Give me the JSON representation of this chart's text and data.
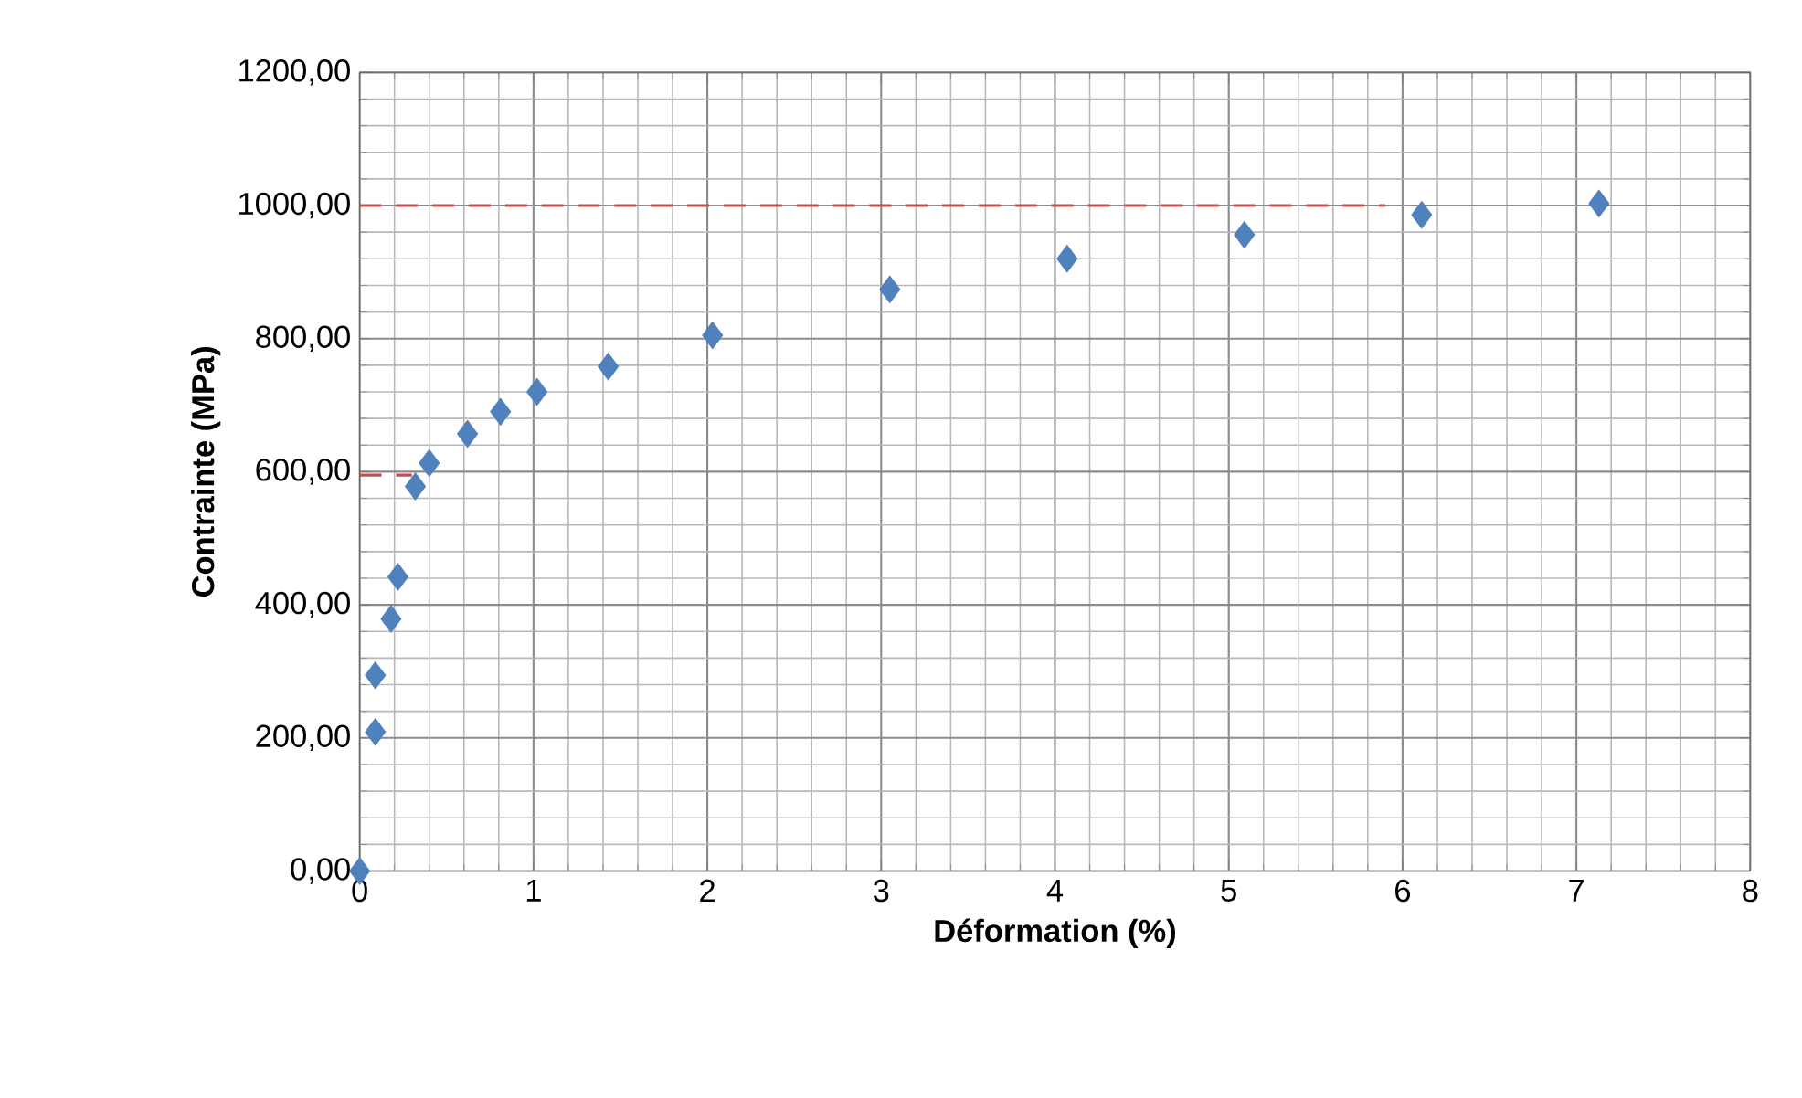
{
  "chart_data": {
    "type": "scatter",
    "xlabel": "Déformation (%)",
    "ylabel": "Contrainte (MPa)",
    "marker": "diamond",
    "grid": true,
    "xlim": [
      0,
      8
    ],
    "xticks": [
      0,
      1,
      2,
      3,
      4,
      5,
      6,
      7,
      8
    ],
    "ylim": [
      0,
      1200
    ],
    "yticks": [
      {
        "value": 0,
        "label": "0,00"
      },
      {
        "value": 200,
        "label": "200,00"
      },
      {
        "value": 400,
        "label": "400,00"
      },
      {
        "value": 600,
        "label": "600,00"
      },
      {
        "value": 800,
        "label": "800,00"
      },
      {
        "value": 1000,
        "label": "1000,00"
      },
      {
        "value": 1200,
        "label": "1200,00"
      }
    ],
    "series": [
      {
        "color": "#4f81bd",
        "x": [
          0,
          0.09,
          0.09,
          0.18,
          0.22,
          0.32,
          0.4,
          0.62,
          0.81,
          1.02,
          1.43,
          2.03,
          3.05,
          4.07,
          5.09,
          6.11,
          7.13
        ],
        "values": [
          0,
          209,
          294,
          379,
          442,
          578,
          613,
          657,
          690,
          720,
          758,
          805,
          874,
          920,
          956,
          986,
          1003
        ]
      },
      {
        "type": "line",
        "color": "#c0504d",
        "line_style": "dashed",
        "marker": "none",
        "x": [
          0,
          5.9
        ],
        "values": [
          1000,
          1000
        ]
      },
      {
        "type": "line",
        "color": "#c0504d",
        "line_style": "dashed",
        "marker": "none",
        "x": [
          0,
          0.3
        ],
        "values": [
          595,
          595
        ]
      }
    ]
  }
}
